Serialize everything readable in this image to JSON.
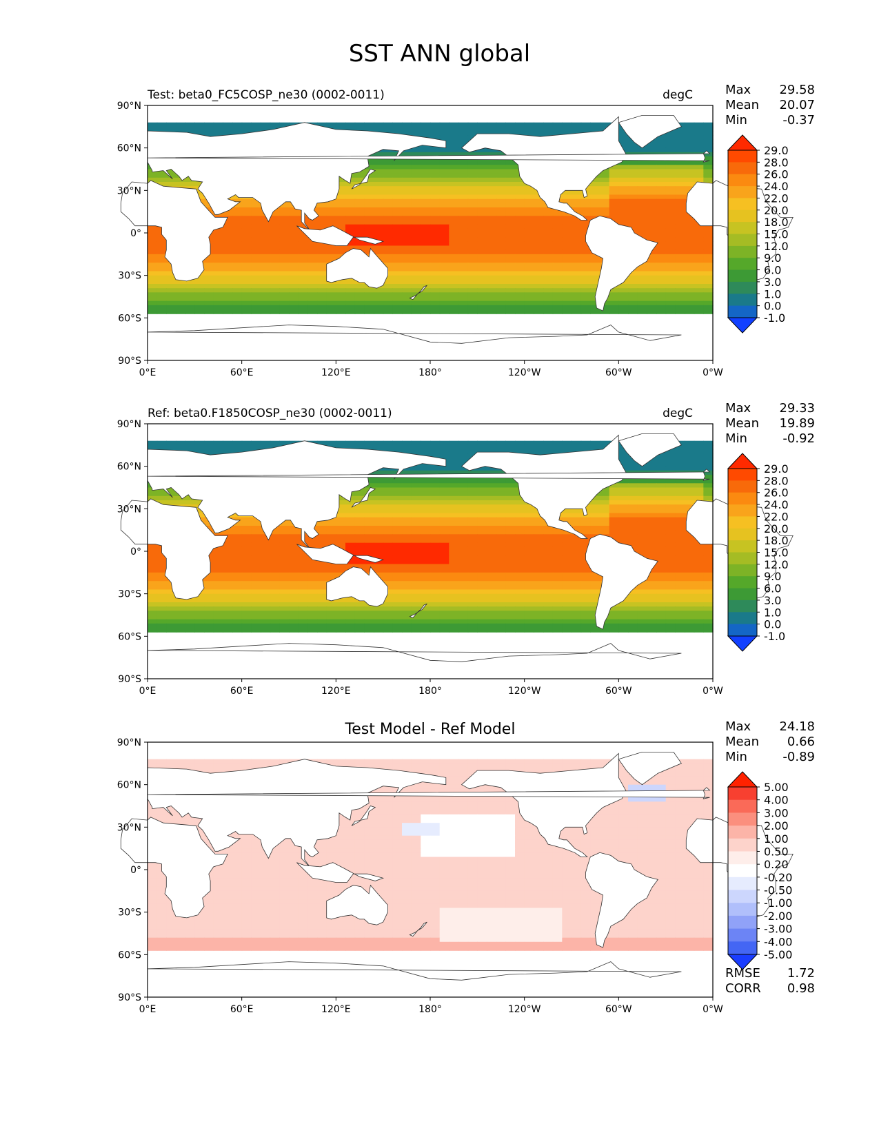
{
  "title": "SST ANN global",
  "panels": [
    {
      "id": "test",
      "title_left": "Test: beta0_FC5COSP_ne30 (0002-0011)",
      "units": "degC",
      "stats": {
        "Max": "29.58",
        "Mean": "20.07",
        "Min": "-0.37"
      },
      "colorbar": {
        "levels": [
          "29.0",
          "28.0",
          "26.0",
          "24.0",
          "22.0",
          "20.0",
          "18.0",
          "15.0",
          "12.0",
          "9.0",
          "6.0",
          "3.0",
          "1.0",
          "0.0",
          "-1.0"
        ],
        "colors": [
          "#ff2a00",
          "#ff4a00",
          "#f86a0a",
          "#fb8a10",
          "#f9a41b",
          "#f6c022",
          "#e6c220",
          "#c7c322",
          "#a5bc24",
          "#7db326",
          "#55a82a",
          "#3d9a35",
          "#2e8a5a",
          "#1a7a8a",
          "#1466c6",
          "#1140ff"
        ]
      }
    },
    {
      "id": "ref",
      "title_left": "Ref: beta0.F1850COSP_ne30 (0002-0011)",
      "units": "degC",
      "stats": {
        "Max": "29.33",
        "Mean": "19.89",
        "Min": "-0.92"
      },
      "colorbar": {
        "levels": [
          "29.0",
          "28.0",
          "26.0",
          "24.0",
          "22.0",
          "20.0",
          "18.0",
          "15.0",
          "12.0",
          "9.0",
          "6.0",
          "3.0",
          "1.0",
          "0.0",
          "-1.0"
        ],
        "colors": [
          "#ff2a00",
          "#ff4a00",
          "#f86a0a",
          "#fb8a10",
          "#f9a41b",
          "#f6c022",
          "#e6c220",
          "#c7c322",
          "#a5bc24",
          "#7db326",
          "#55a82a",
          "#3d9a35",
          "#2e8a5a",
          "#1a7a8a",
          "#1466c6",
          "#1140ff"
        ]
      }
    },
    {
      "id": "diff",
      "title_center": "Test Model - Ref Model",
      "stats": {
        "Max": "24.18",
        "Mean": "0.66",
        "Min": "-0.89"
      },
      "extra_stats": {
        "RMSE": "1.72",
        "CORR": "0.98"
      },
      "colorbar": {
        "levels": [
          "5.00",
          "4.00",
          "3.00",
          "2.00",
          "1.00",
          "0.50",
          "0.20",
          "-0.20",
          "-0.50",
          "-1.00",
          "-2.00",
          "-3.00",
          "-4.00",
          "-5.00"
        ],
        "colors": [
          "#ff2200",
          "#f84030",
          "#fa6a58",
          "#fb8f7e",
          "#fcb4a8",
          "#fdd3cb",
          "#feeeea",
          "#ffffff",
          "#e6ecfe",
          "#ccd6fd",
          "#b0bffb",
          "#90a2f8",
          "#6c84f5",
          "#4466f4",
          "#1a3dff"
        ]
      }
    }
  ],
  "axes": {
    "x_ticks": [
      "0°E",
      "60°E",
      "120°E",
      "180°",
      "120°W",
      "60°W",
      "0°W"
    ],
    "y_ticks": [
      "90°N",
      "60°N",
      "30°N",
      "0°",
      "30°S",
      "60°S",
      "90°S"
    ]
  }
}
